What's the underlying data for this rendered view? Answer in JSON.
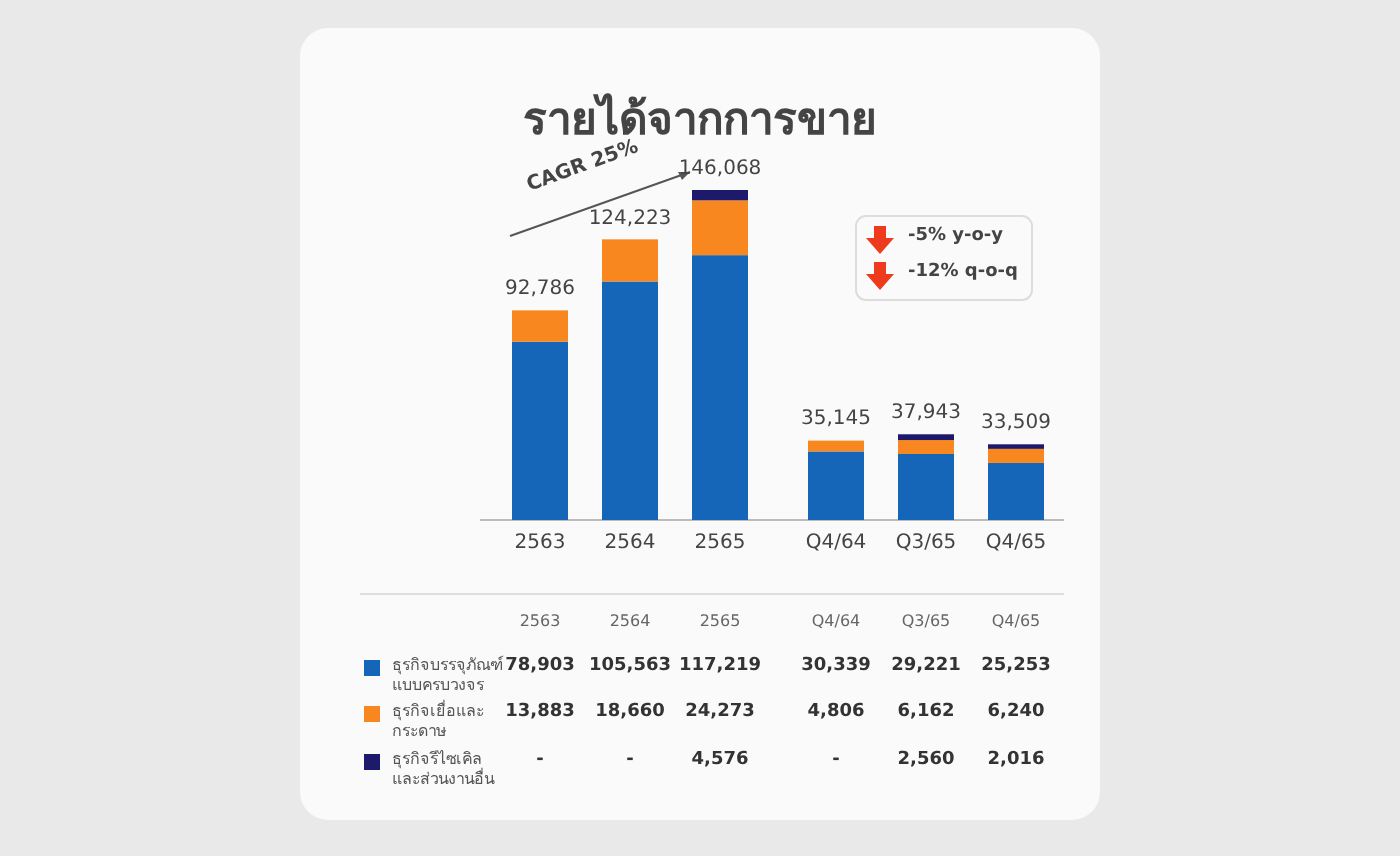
{
  "chart_data": {
    "type": "bar",
    "stacked": true,
    "title": "รายได้จากการขาย",
    "legend": "bottom left",
    "categories": [
      "2563",
      "2564",
      "2565",
      "Q4/64",
      "Q3/65",
      "Q4/65"
    ],
    "series": [
      {
        "name": "ธุรกิจบรรจุภัณฑ์แบบครบวงจร",
        "color": "#1565b8",
        "values": [
          78903,
          105563,
          117219,
          30339,
          29221,
          25253
        ],
        "value_labels": [
          "78,903",
          "105,563",
          "117,219",
          "30,339",
          "29,221",
          "25,253"
        ]
      },
      {
        "name": "ธุรกิจเยื่อและกระดาษ",
        "color": "#f7871e",
        "values": [
          13883,
          18660,
          24273,
          4806,
          6162,
          6240
        ],
        "value_labels": [
          "13,883",
          "18,660",
          "24,273",
          "4,806",
          "6,162",
          "6,240"
        ]
      },
      {
        "name": "ธุรกิจรีไซเคิลและส่วนงานอื่น",
        "color": "#1d1a6b",
        "values": [
          null,
          null,
          4576,
          null,
          2560,
          2016
        ],
        "value_labels": [
          "-",
          "-",
          "4,576",
          "-",
          "2,560",
          "2,016"
        ]
      }
    ],
    "totals": [
      "92,786",
      "124,223",
      "146,068",
      "35,145",
      "37,943",
      "33,509"
    ],
    "annotations": [
      "CAGR 25%",
      "-5% y-o-y",
      "-12% q-o-q"
    ]
  }
}
